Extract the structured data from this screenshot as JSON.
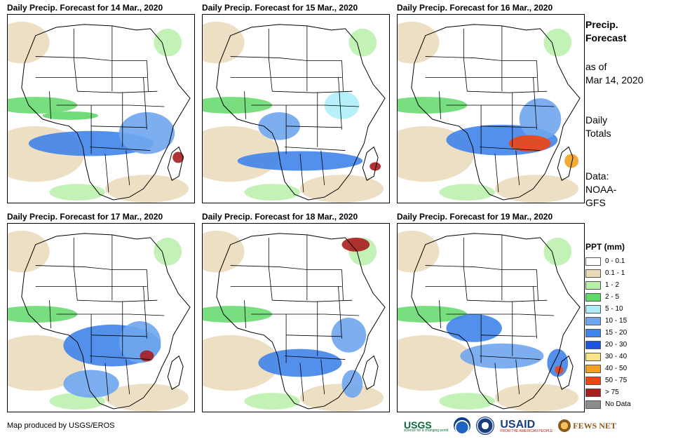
{
  "panels": [
    {
      "title": "Daily Precip. Forecast for 14 Mar., 2020"
    },
    {
      "title": "Daily Precip. Forecast for 15 Mar., 2020"
    },
    {
      "title": "Daily Precip. Forecast for 16 Mar., 2020"
    },
    {
      "title": "Daily Precip. Forecast for 17 Mar., 2020"
    },
    {
      "title": "Daily Precip. Forecast for 18 Mar., 2020"
    },
    {
      "title": "Daily Precip. Forecast for 19 Mar., 2020"
    }
  ],
  "sidebar": {
    "heading_line1": "Precip.",
    "heading_line2": "Forecast",
    "asof_line1": "as of",
    "asof_line2": "Mar 14, 2020",
    "totals_line1": "Daily",
    "totals_line2": "Totals",
    "data_line1": "Data:",
    "data_line2": "NOAA-",
    "data_line3": "GFS"
  },
  "legend": {
    "title": "PPT (mm)",
    "items": [
      {
        "label": "0 - 0.1",
        "color": "#ffffff"
      },
      {
        "label": "0.1 - 1",
        "color": "#ead9b8"
      },
      {
        "label": "1 - 2",
        "color": "#b7f0a8"
      },
      {
        "label": "2 - 5",
        "color": "#61d86a"
      },
      {
        "label": "5 - 10",
        "color": "#aeeefb"
      },
      {
        "label": "10 - 15",
        "color": "#6fa6ee"
      },
      {
        "label": "15 - 20",
        "color": "#3f84ea"
      },
      {
        "label": "20 - 30",
        "color": "#1e55e0"
      },
      {
        "label": "30 - 40",
        "color": "#f7e48a"
      },
      {
        "label": "40 - 50",
        "color": "#f3a21f"
      },
      {
        "label": "50 - 75",
        "color": "#ee4512"
      },
      {
        "label": "> 75",
        "color": "#a81d1d"
      },
      {
        "label": "No Data",
        "color": "#8c8c8c"
      }
    ]
  },
  "footer": {
    "credit": "Map produced by USGS/EROS",
    "logo_usgs": "USGS",
    "logo_usgs_tag": "science for a changing world",
    "logo_usaid": "USAID",
    "logo_usaid_tag": "FROM THE AMERICAN PEOPLE",
    "logo_fews": "FEWS NET"
  }
}
